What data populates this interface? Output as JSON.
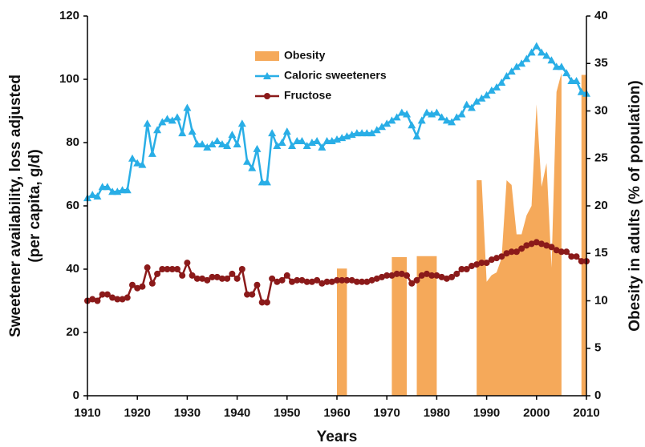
{
  "chart_data": {
    "type": "line",
    "xlabel": "Years",
    "ylabel": [
      "Sweetener availability, loss adjusted",
      "(per capita, g/d)"
    ],
    "y2label": "Obesity in adults (% of population)",
    "x": [
      1910,
      1911,
      1912,
      1913,
      1914,
      1915,
      1916,
      1917,
      1918,
      1919,
      1920,
      1921,
      1922,
      1923,
      1924,
      1925,
      1926,
      1927,
      1928,
      1929,
      1930,
      1931,
      1932,
      1933,
      1934,
      1935,
      1936,
      1937,
      1938,
      1939,
      1940,
      1941,
      1942,
      1943,
      1944,
      1945,
      1946,
      1947,
      1948,
      1949,
      1950,
      1951,
      1952,
      1953,
      1954,
      1955,
      1956,
      1957,
      1958,
      1959,
      1960,
      1961,
      1962,
      1963,
      1964,
      1965,
      1966,
      1967,
      1968,
      1969,
      1970,
      1971,
      1972,
      1973,
      1974,
      1975,
      1976,
      1977,
      1978,
      1979,
      1980,
      1981,
      1982,
      1983,
      1984,
      1985,
      1986,
      1987,
      1988,
      1989,
      1990,
      1991,
      1992,
      1993,
      1994,
      1995,
      1996,
      1997,
      1998,
      1999,
      2000,
      2001,
      2002,
      2003,
      2004,
      2005,
      2006,
      2007,
      2008,
      2009,
      2010
    ],
    "xlim": [
      1910,
      2010
    ],
    "xticks": [
      1910,
      1920,
      1930,
      1940,
      1950,
      1960,
      1970,
      1980,
      1990,
      2000,
      2010
    ],
    "ylim": [
      0,
      120
    ],
    "yticks": [
      0,
      20,
      40,
      60,
      80,
      100,
      120
    ],
    "y2lim": [
      0,
      40
    ],
    "y2ticks": [
      0,
      5,
      10,
      15,
      20,
      25,
      30,
      35,
      40
    ],
    "legend": "upper center",
    "series": [
      {
        "name": "Obesity",
        "kind": "area",
        "axis": "y2",
        "color": "#f5a95a",
        "values": [
          null,
          null,
          null,
          null,
          null,
          null,
          null,
          null,
          null,
          null,
          null,
          null,
          null,
          null,
          null,
          null,
          null,
          null,
          null,
          null,
          null,
          null,
          null,
          null,
          null,
          null,
          null,
          null,
          null,
          null,
          null,
          null,
          null,
          null,
          null,
          null,
          null,
          null,
          null,
          null,
          null,
          null,
          null,
          null,
          null,
          null,
          null,
          null,
          null,
          null,
          13.4,
          13.4,
          13.4,
          null,
          null,
          null,
          null,
          null,
          null,
          null,
          null,
          14.6,
          14.6,
          14.6,
          14.6,
          null,
          14.7,
          14.7,
          14.7,
          14.7,
          14.7,
          null,
          null,
          null,
          null,
          null,
          null,
          null,
          22.7,
          22.7,
          12,
          12.7,
          13,
          14.5,
          22.7,
          22.2,
          17,
          17,
          19,
          20,
          30.7,
          22,
          24.5,
          13.5,
          32,
          34,
          null,
          null,
          null,
          33.8,
          33.8
        ]
      },
      {
        "name": "Caloric sweeteners",
        "kind": "line",
        "marker": "triangle",
        "color": "#29aee6",
        "values": [
          62.5,
          63.5,
          63,
          66,
          66,
          64.5,
          64.5,
          65,
          65,
          75,
          73.5,
          73,
          86,
          76.5,
          84,
          86.5,
          87.5,
          87,
          88,
          83,
          91,
          83.5,
          79.5,
          79.5,
          78.5,
          79.5,
          80.5,
          79.5,
          79,
          82.5,
          79.5,
          86,
          74,
          72,
          78,
          67.5,
          67.5,
          83,
          79,
          80,
          83.5,
          79,
          80.5,
          80.5,
          79,
          80,
          80.5,
          78.5,
          80.5,
          80.5,
          81,
          81.5,
          82,
          82.5,
          83,
          83,
          83,
          83,
          84,
          85,
          86,
          87,
          88,
          89.5,
          89,
          85.5,
          82,
          87,
          89.5,
          89,
          89.5,
          88,
          87,
          86.5,
          88,
          89,
          92,
          91,
          93,
          94,
          95,
          96.5,
          97.5,
          99,
          101,
          102.5,
          104,
          105,
          106.5,
          108.5,
          110.5,
          108.5,
          107.5,
          106,
          104,
          104,
          102,
          99.5,
          99.5,
          96,
          95.5
        ]
      },
      {
        "name": "Fructose",
        "kind": "line",
        "marker": "circle",
        "color": "#8b1a1a",
        "values": [
          30,
          30.5,
          30,
          32,
          32,
          31,
          30.5,
          30.5,
          31,
          35,
          34,
          34.5,
          40.5,
          35.5,
          38.5,
          40,
          40,
          40,
          40,
          38,
          42,
          38,
          37,
          37,
          36.5,
          37.5,
          37.5,
          37,
          37,
          38.5,
          37,
          40,
          32,
          32,
          35,
          29.5,
          29.5,
          37,
          36,
          36.5,
          38,
          36,
          36.5,
          36.5,
          36,
          36,
          36.5,
          35.5,
          36,
          36,
          36.5,
          36.5,
          36.5,
          36.5,
          36,
          36,
          36,
          36.5,
          37,
          37.5,
          38,
          38,
          38.5,
          38.5,
          38,
          35.5,
          36.5,
          38,
          38.5,
          38,
          38,
          37.5,
          37,
          37.5,
          38.5,
          40,
          40,
          41,
          41.5,
          42,
          42,
          43,
          43.5,
          44,
          45,
          45.5,
          45.5,
          46.5,
          47.5,
          48,
          48.5,
          48,
          47.5,
          47,
          46,
          45.5,
          45.5,
          44,
          44,
          42.5,
          42.5
        ]
      }
    ]
  }
}
